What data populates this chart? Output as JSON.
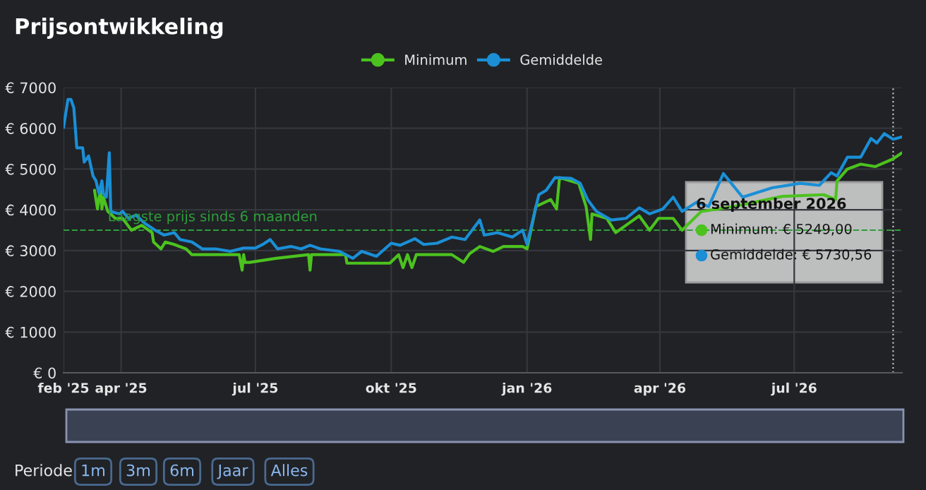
{
  "chart_data": {
    "type": "line",
    "title": "Prijsontwikkeling",
    "series": [
      {
        "name": "Minimum",
        "color": "#4cc21f",
        "x": [
          "2025-03-14",
          "2025-03-16",
          "2025-03-18",
          "2025-03-19",
          "2025-03-20",
          "2025-03-23",
          "2025-03-25",
          "2025-03-28",
          "2025-04-02",
          "2025-04-08",
          "2025-04-15",
          "2025-04-22",
          "2025-04-23",
          "2025-04-28",
          "2025-05-01",
          "2025-05-07",
          "2025-05-15",
          "2025-05-19",
          "2025-06-01",
          "2025-06-20",
          "2025-06-22",
          "2025-06-23",
          "2025-06-24",
          "2025-06-27",
          "2025-07-15",
          "2025-08-06",
          "2025-08-07",
          "2025-08-08",
          "2025-08-31",
          "2025-09-01",
          "2025-09-30",
          "2025-10-06",
          "2025-10-09",
          "2025-10-12",
          "2025-10-15",
          "2025-10-18",
          "2025-11-11",
          "2025-11-19",
          "2025-11-23",
          "2025-11-30",
          "2025-12-09",
          "2025-12-16",
          "2025-12-29",
          "2026-01-01",
          "2026-01-07",
          "2026-01-17",
          "2026-01-21",
          "2026-01-23",
          "2026-02-05",
          "2026-02-10",
          "2026-02-13",
          "2026-02-14",
          "2026-02-24",
          "2026-03-02",
          "2026-03-09",
          "2026-03-18",
          "2026-03-25",
          "2026-03-31",
          "2026-04-10",
          "2026-04-16",
          "2026-04-29",
          "2026-05-21",
          "2026-06-23",
          "2026-07-21",
          "2026-07-29",
          "2026-07-30",
          "2026-08-06",
          "2026-08-15",
          "2026-08-25",
          "2026-09-06",
          "2026-09-12"
        ],
        "values": [
          4480,
          4020,
          4540,
          4020,
          4310,
          3960,
          3900,
          3790,
          3790,
          3500,
          3620,
          3440,
          3210,
          3040,
          3210,
          3150,
          3040,
          2900,
          2900,
          2900,
          2520,
          2900,
          2710,
          2710,
          2810,
          2900,
          2520,
          2900,
          2900,
          2690,
          2690,
          2900,
          2580,
          2900,
          2580,
          2900,
          2900,
          2710,
          2920,
          3100,
          2980,
          3100,
          3100,
          3040,
          4080,
          4250,
          4020,
          4790,
          4650,
          4080,
          3270,
          3900,
          3790,
          3440,
          3620,
          3850,
          3500,
          3790,
          3790,
          3500,
          3960,
          4080,
          4330,
          4370,
          4250,
          4710,
          5000,
          5120,
          5060,
          5250,
          5400
        ]
      },
      {
        "name": "Gemiddelde",
        "color": "#1a8fd6",
        "x": [
          "2025-02-21",
          "2025-02-24",
          "2025-02-26",
          "2025-02-28",
          "2025-03-02",
          "2025-03-06",
          "2025-03-07",
          "2025-03-10",
          "2025-03-13",
          "2025-03-15",
          "2025-03-17",
          "2025-03-19",
          "2025-03-20",
          "2025-03-22",
          "2025-03-24",
          "2025-03-25",
          "2025-03-31",
          "2025-04-02",
          "2025-04-06",
          "2025-04-11",
          "2025-04-17",
          "2025-04-24",
          "2025-04-30",
          "2025-05-07",
          "2025-05-11",
          "2025-05-19",
          "2025-05-26",
          "2025-06-04",
          "2025-06-14",
          "2025-06-23",
          "2025-07-01",
          "2025-07-06",
          "2025-07-11",
          "2025-07-16",
          "2025-07-25",
          "2025-08-01",
          "2025-08-07",
          "2025-08-14",
          "2025-08-27",
          "2025-09-05",
          "2025-09-11",
          "2025-09-21",
          "2025-10-01",
          "2025-10-07",
          "2025-10-17",
          "2025-10-23",
          "2025-11-01",
          "2025-11-11",
          "2025-11-20",
          "2025-11-30",
          "2025-12-03",
          "2025-12-12",
          "2025-12-22",
          "2025-12-29",
          "2026-01-01",
          "2026-01-09",
          "2026-01-14",
          "2026-01-20",
          "2026-01-31",
          "2026-02-06",
          "2026-02-11",
          "2026-02-17",
          "2026-02-27",
          "2026-03-09",
          "2026-03-18",
          "2026-03-25",
          "2026-04-03",
          "2026-04-10",
          "2026-04-16",
          "2026-04-26",
          "2026-05-04",
          "2026-05-14",
          "2026-05-27",
          "2026-06-16",
          "2026-07-05",
          "2026-07-18",
          "2026-07-26",
          "2026-07-30",
          "2026-08-06",
          "2026-08-15",
          "2026-08-22",
          "2026-08-26",
          "2026-08-31",
          "2026-09-06",
          "2026-09-12"
        ],
        "values": [
          6020,
          6710,
          6710,
          6500,
          5520,
          5520,
          5170,
          5320,
          4830,
          4710,
          4400,
          4710,
          4400,
          4310,
          5400,
          3960,
          3900,
          3960,
          3790,
          3870,
          3670,
          3500,
          3380,
          3440,
          3270,
          3210,
          3040,
          3040,
          2980,
          3060,
          3060,
          3150,
          3270,
          3040,
          3100,
          3040,
          3130,
          3040,
          2980,
          2810,
          2980,
          2860,
          3180,
          3130,
          3290,
          3150,
          3180,
          3330,
          3270,
          3750,
          3380,
          3440,
          3330,
          3500,
          3150,
          4370,
          4480,
          4790,
          4770,
          4650,
          4250,
          3960,
          3750,
          3790,
          4050,
          3900,
          4020,
          4310,
          3960,
          4190,
          4080,
          4890,
          4310,
          4540,
          4650,
          4600,
          4910,
          4830,
          5290,
          5290,
          5750,
          5640,
          5870,
          5730,
          5790
        ]
      }
    ],
    "xlim": [
      "2025-02-21",
      "2026-09-12"
    ],
    "xticks": [
      {
        "value": "2025-02-21",
        "label": "feb '25"
      },
      {
        "value": "2025-04-01",
        "label": "apr '25"
      },
      {
        "value": "2025-07-01",
        "label": "jul '25"
      },
      {
        "value": "2025-10-01",
        "label": "okt '25"
      },
      {
        "value": "2026-01-01",
        "label": "jan '26"
      },
      {
        "value": "2026-04-01",
        "label": "apr '26"
      },
      {
        "value": "2026-07-01",
        "label": "jul '26"
      }
    ],
    "ylim": [
      0,
      7000
    ],
    "yticks": [
      {
        "value": 0,
        "label": "€ 0"
      },
      {
        "value": 1000,
        "label": "€ 1000"
      },
      {
        "value": 2000,
        "label": "€ 2000"
      },
      {
        "value": 3000,
        "label": "€ 3000"
      },
      {
        "value": 4000,
        "label": "€ 4000"
      },
      {
        "value": 5000,
        "label": "€ 5000"
      },
      {
        "value": 6000,
        "label": "€ 6000"
      },
      {
        "value": 7000,
        "label": "€ 7000"
      }
    ],
    "grid": true,
    "legend": "top",
    "marker": "none",
    "line_style": "solid",
    "ref_lines": [
      {
        "axis": "y",
        "value": 3500,
        "label": "Laagste prijs sinds 6 maanden",
        "color": "#2e9e3a",
        "line_style": "dashed"
      },
      {
        "axis": "x",
        "value": "2026-09-06",
        "color": "#bbbbbb",
        "line_style": "dotted"
      }
    ],
    "annotations": [
      "6 september 2026",
      "Minimum: € 5249,00",
      "Gemiddelde: € 5730,56",
      "Periode",
      "1m",
      "3m",
      "6m",
      "Jaar",
      "Alles"
    ]
  }
}
